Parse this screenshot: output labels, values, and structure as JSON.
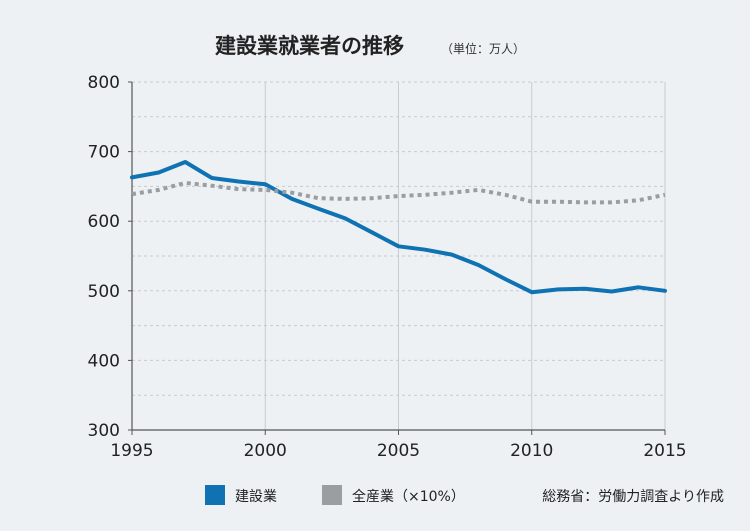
{
  "chart_data": {
    "type": "line",
    "title": "建設業就業者の推移",
    "unit_note": "（単位：万人）",
    "ylim": [
      300,
      800
    ],
    "yticks": [
      "300",
      "400",
      "500",
      "600",
      "700",
      "800"
    ],
    "xlim": [
      1995,
      2015
    ],
    "xticks": [
      "1995",
      "2000",
      "2005",
      "2010",
      "2015"
    ],
    "grid": true,
    "legend_position": "bottom",
    "series": [
      {
        "name": "建設業",
        "color": "#0f72b3",
        "style": "solid",
        "x": [
          1995,
          1996,
          1997,
          1998,
          1999,
          2000,
          2001,
          2002,
          2003,
          2004,
          2005,
          2006,
          2007,
          2008,
          2009,
          2010,
          2011,
          2012,
          2013,
          2014,
          2015
        ],
        "values": [
          663,
          670,
          685,
          662,
          657,
          653,
          632,
          618,
          604,
          584,
          564,
          559,
          552,
          537,
          517,
          498,
          502,
          503,
          499,
          505,
          500
        ]
      },
      {
        "name": "全産業（×10%）",
        "color": "#9a9ea1",
        "style": "dotted",
        "x": [
          1995,
          1996,
          1997,
          1998,
          1999,
          2000,
          2001,
          2002,
          2003,
          2004,
          2005,
          2006,
          2007,
          2008,
          2009,
          2010,
          2011,
          2012,
          2013,
          2014,
          2015
        ],
        "values": [
          639,
          645,
          655,
          651,
          646,
          645,
          641,
          633,
          632,
          633,
          636,
          638,
          641,
          645,
          638,
          628,
          628,
          627,
          627,
          630,
          638
        ]
      }
    ],
    "source": "総務省：労働力調査より作成"
  }
}
